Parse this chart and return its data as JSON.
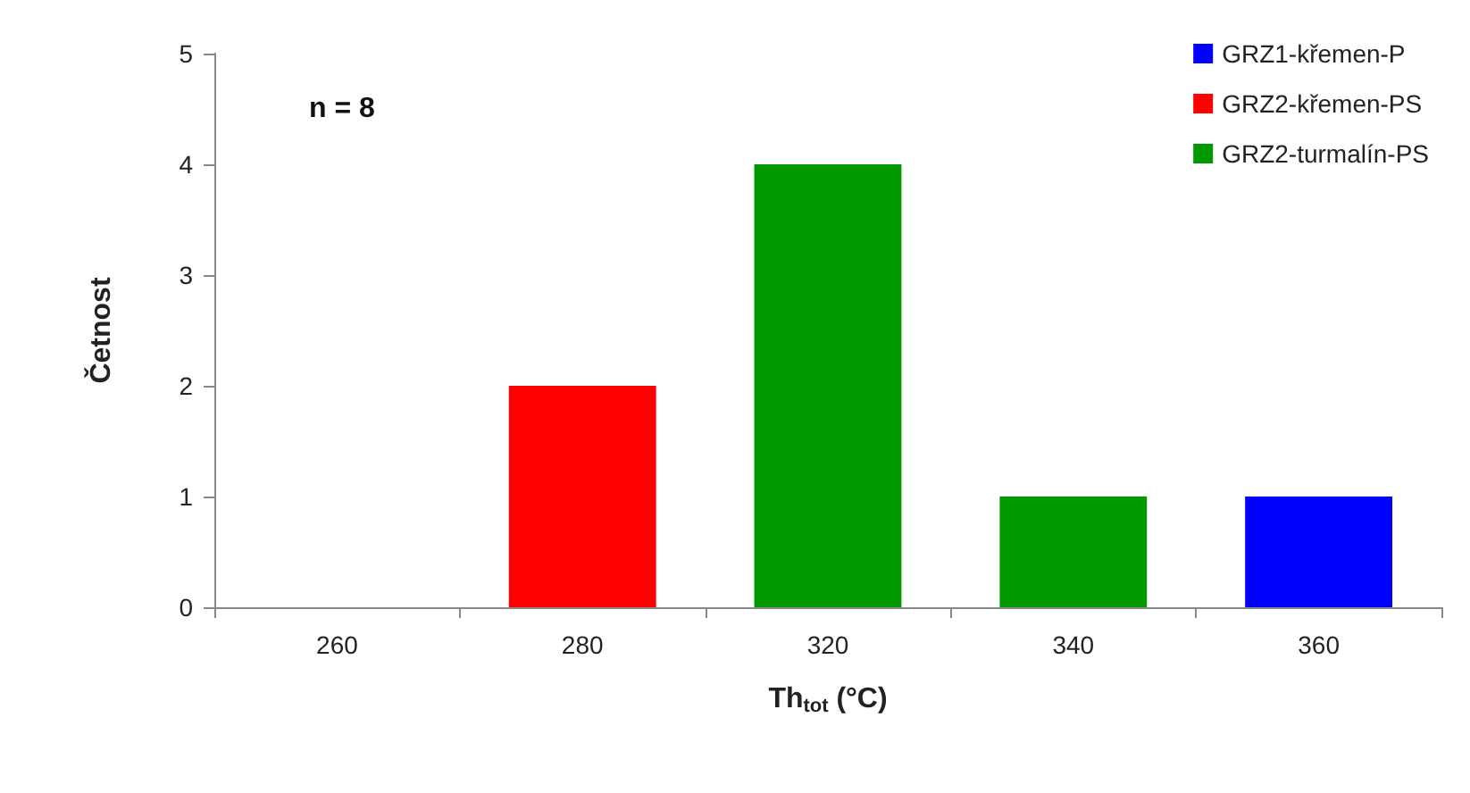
{
  "chart_data": {
    "type": "bar",
    "stacked": true,
    "xlabel": "Th$_{tot}$ (°C)",
    "ylabel": "Četnost",
    "annotations": [
      "n = 8"
    ],
    "categories": [
      "260",
      "280",
      "320",
      "340",
      "360"
    ],
    "series": [
      {
        "name": "GRZ1-křemen-P",
        "color": "#0000ff",
        "values": [
          null,
          null,
          null,
          null,
          1
        ]
      },
      {
        "name": "GRZ2-křemen-PS",
        "color": "#ff0000",
        "values": [
          null,
          2,
          null,
          null,
          null
        ]
      },
      {
        "name": "GRZ2-turmalín-PS",
        "color": "#009900",
        "values": [
          null,
          null,
          4,
          1,
          null
        ]
      }
    ],
    "ylim": [
      0,
      5
    ],
    "yticks": [
      0,
      1,
      2,
      3,
      4,
      5
    ],
    "grid": false,
    "legend": "top right"
  }
}
